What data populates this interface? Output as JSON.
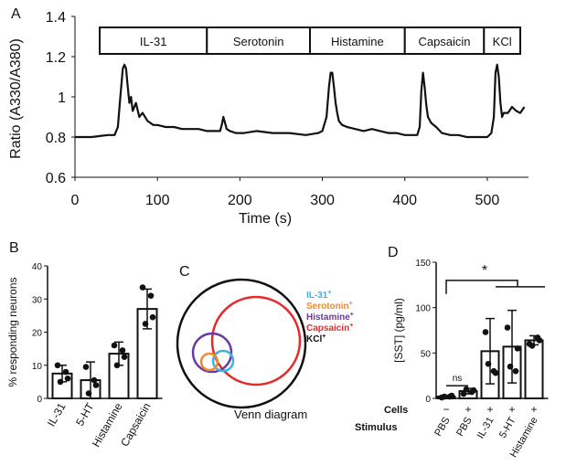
{
  "panel_letters": {
    "a": "A",
    "b": "B",
    "c": "C",
    "d": "D"
  },
  "chart_data": [
    {
      "panel": "A",
      "type": "line",
      "xlabel": "Time (s)",
      "ylabel": "Ratio (A330/A380)",
      "xlim": [
        0,
        550
      ],
      "ylim": [
        0.6,
        1.4
      ],
      "xticks": [
        0,
        100,
        200,
        300,
        400,
        500
      ],
      "yticks": [
        0.6,
        0.8,
        1,
        1.2,
        1.4
      ],
      "stimulus_bar": [
        {
          "label": "IL-31",
          "start": 30,
          "end": 160
        },
        {
          "label": "Serotonin",
          "start": 160,
          "end": 285
        },
        {
          "label": "Histamine",
          "start": 285,
          "end": 400
        },
        {
          "label": "Capsaicin",
          "start": 400,
          "end": 496
        },
        {
          "label": "KCl",
          "start": 496,
          "end": 540
        }
      ],
      "series": [
        {
          "x": [
            0,
            10,
            20,
            30,
            40,
            48,
            52,
            55,
            58,
            60,
            62,
            64,
            66,
            68,
            70,
            74,
            78,
            82,
            88,
            95,
            100,
            110,
            120,
            130,
            140,
            150,
            160,
            170,
            176,
            178,
            180,
            182,
            184,
            188,
            195,
            205,
            220,
            240,
            260,
            280,
            295,
            300,
            305,
            308,
            310,
            312,
            314,
            316,
            318,
            320,
            324,
            330,
            340,
            350,
            360,
            370,
            380,
            390,
            400,
            410,
            415,
            418,
            420,
            422,
            424,
            426,
            428,
            432,
            438,
            445,
            455,
            465,
            475,
            485,
            495,
            500,
            505,
            508,
            510,
            512,
            514,
            516,
            518,
            520,
            525,
            530,
            535,
            540,
            545
          ],
          "y": [
            0.8,
            0.8,
            0.8,
            0.805,
            0.81,
            0.81,
            0.85,
            1.0,
            1.14,
            1.16,
            1.14,
            1.05,
            0.97,
            1.0,
            0.93,
            0.97,
            0.9,
            0.92,
            0.88,
            0.86,
            0.86,
            0.85,
            0.85,
            0.84,
            0.84,
            0.84,
            0.83,
            0.83,
            0.83,
            0.86,
            0.9,
            0.87,
            0.84,
            0.83,
            0.82,
            0.82,
            0.83,
            0.82,
            0.82,
            0.81,
            0.82,
            0.83,
            0.9,
            1.05,
            1.12,
            1.12,
            1.05,
            0.97,
            0.92,
            0.88,
            0.86,
            0.85,
            0.84,
            0.83,
            0.84,
            0.83,
            0.82,
            0.82,
            0.81,
            0.81,
            0.81,
            0.85,
            1.03,
            1.12,
            1.05,
            0.96,
            0.9,
            0.87,
            0.85,
            0.82,
            0.81,
            0.81,
            0.8,
            0.8,
            0.8,
            0.8,
            0.82,
            0.9,
            1.12,
            1.16,
            1.1,
            0.97,
            0.9,
            0.92,
            0.92,
            0.95,
            0.93,
            0.92,
            0.95
          ]
        }
      ]
    },
    {
      "panel": "B",
      "type": "bar",
      "ylabel": "% responding neurons",
      "ylim": [
        0,
        40
      ],
      "yticks": [
        0,
        10,
        20,
        30,
        40
      ],
      "categories": [
        "IL-31",
        "5-HT",
        "Histamine",
        "Capsaicin"
      ],
      "values": [
        7.5,
        5.5,
        13.5,
        27
      ],
      "error": [
        2.5,
        5.5,
        3.5,
        6
      ],
      "points": [
        [
          10,
          8,
          5,
          6
        ],
        [
          9.5,
          5.5,
          1.5,
          4
        ],
        [
          16,
          14.5,
          10,
          12.5
        ],
        [
          33.5,
          31,
          22.5,
          24.5
        ]
      ]
    },
    {
      "panel": "C",
      "type": "venn",
      "caption": "Venn diagram",
      "legend": [
        {
          "label": "IL-31",
          "sup": "+",
          "color": "#3bb2e4"
        },
        {
          "label": "Serotonin",
          "sup": "+",
          "color": "#f08a2c"
        },
        {
          "label": "Histamine",
          "sup": "+",
          "color": "#6a3aa0"
        },
        {
          "label": "Capsaicin",
          "sup": "+",
          "color": "#e52b2b"
        },
        {
          "label": "KCl",
          "sup": "+",
          "color": "#111111"
        }
      ]
    },
    {
      "panel": "D",
      "type": "bar",
      "ylabel": "[SST] (pg/ml)",
      "ylim": [
        0,
        150
      ],
      "yticks": [
        0,
        50,
        100,
        150
      ],
      "categories": [
        "PBS",
        "PBS",
        "IL-31",
        "5-HT",
        "Histamine"
      ],
      "row_labels": {
        "cells": "Cells",
        "stimulus": "Stimulus"
      },
      "cells": [
        "−",
        "+",
        "+",
        "+",
        "+"
      ],
      "values": [
        2,
        8,
        52,
        57,
        64
      ],
      "error": [
        1,
        3,
        36,
        40,
        5
      ],
      "points": [
        [
          1,
          2,
          2,
          3
        ],
        [
          5,
          7,
          10,
          9
        ],
        [
          73,
          30,
          38,
          28
        ],
        [
          78,
          30,
          35,
          55
        ],
        [
          60,
          67,
          58,
          64
        ]
      ],
      "annotations": {
        "ns": "ns",
        "star": "*"
      }
    }
  ]
}
